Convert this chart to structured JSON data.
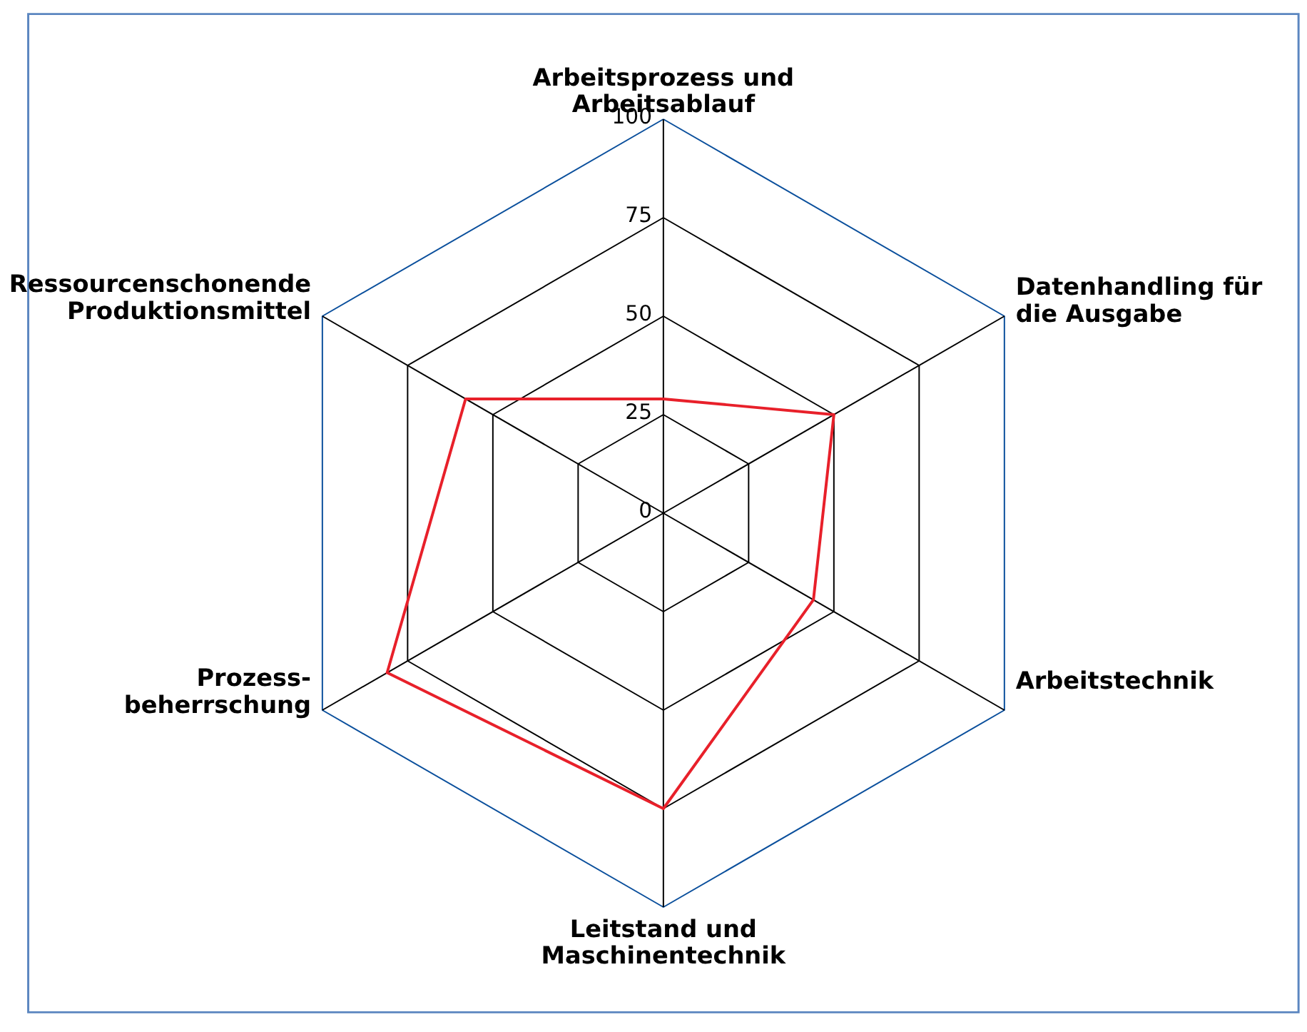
{
  "chart_data": {
    "type": "radar",
    "categories": [
      "Arbeitsprozess und\nArbeitsablauf",
      "Datenhandling für\ndie Ausgabe",
      "Arbeitstechnik",
      "Leitstand und\nMaschinentechnik",
      "Prozess-\nbeherrschung",
      "Ressourcenschonende\nProduktionsmittel"
    ],
    "series": [
      {
        "color": "#e8202a",
        "values": [
          29,
          50,
          44,
          75,
          81,
          58
        ]
      }
    ],
    "ylim": [
      0,
      100
    ],
    "yticks": [
      0,
      25,
      50,
      75,
      100
    ],
    "grid": true,
    "marker": "none",
    "line_style": "solid"
  }
}
